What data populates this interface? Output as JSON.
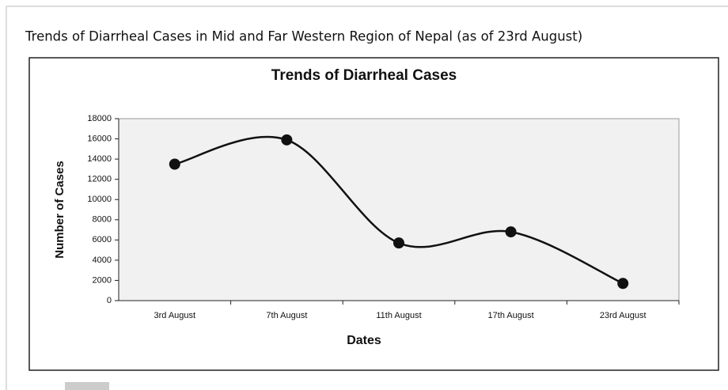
{
  "caption": "Trends of Diarrheal Cases in Mid and Far Western Region of Nepal (as of 23rd August)",
  "chart_data": {
    "type": "line",
    "title": "Trends of Diarrheal Cases",
    "x_label": "Dates",
    "y_label": "Number of Cases",
    "categories": [
      "3rd August",
      "7th August",
      "11th August",
      "17th August",
      "23rd August"
    ],
    "values": [
      13500,
      15900,
      5700,
      6800,
      1700
    ],
    "color": "#111111",
    "ylim": [
      0,
      18000
    ],
    "yticks": [
      0,
      2000,
      4000,
      6000,
      8000,
      10000,
      12000,
      14000,
      16000,
      18000
    ],
    "smooth": true
  }
}
